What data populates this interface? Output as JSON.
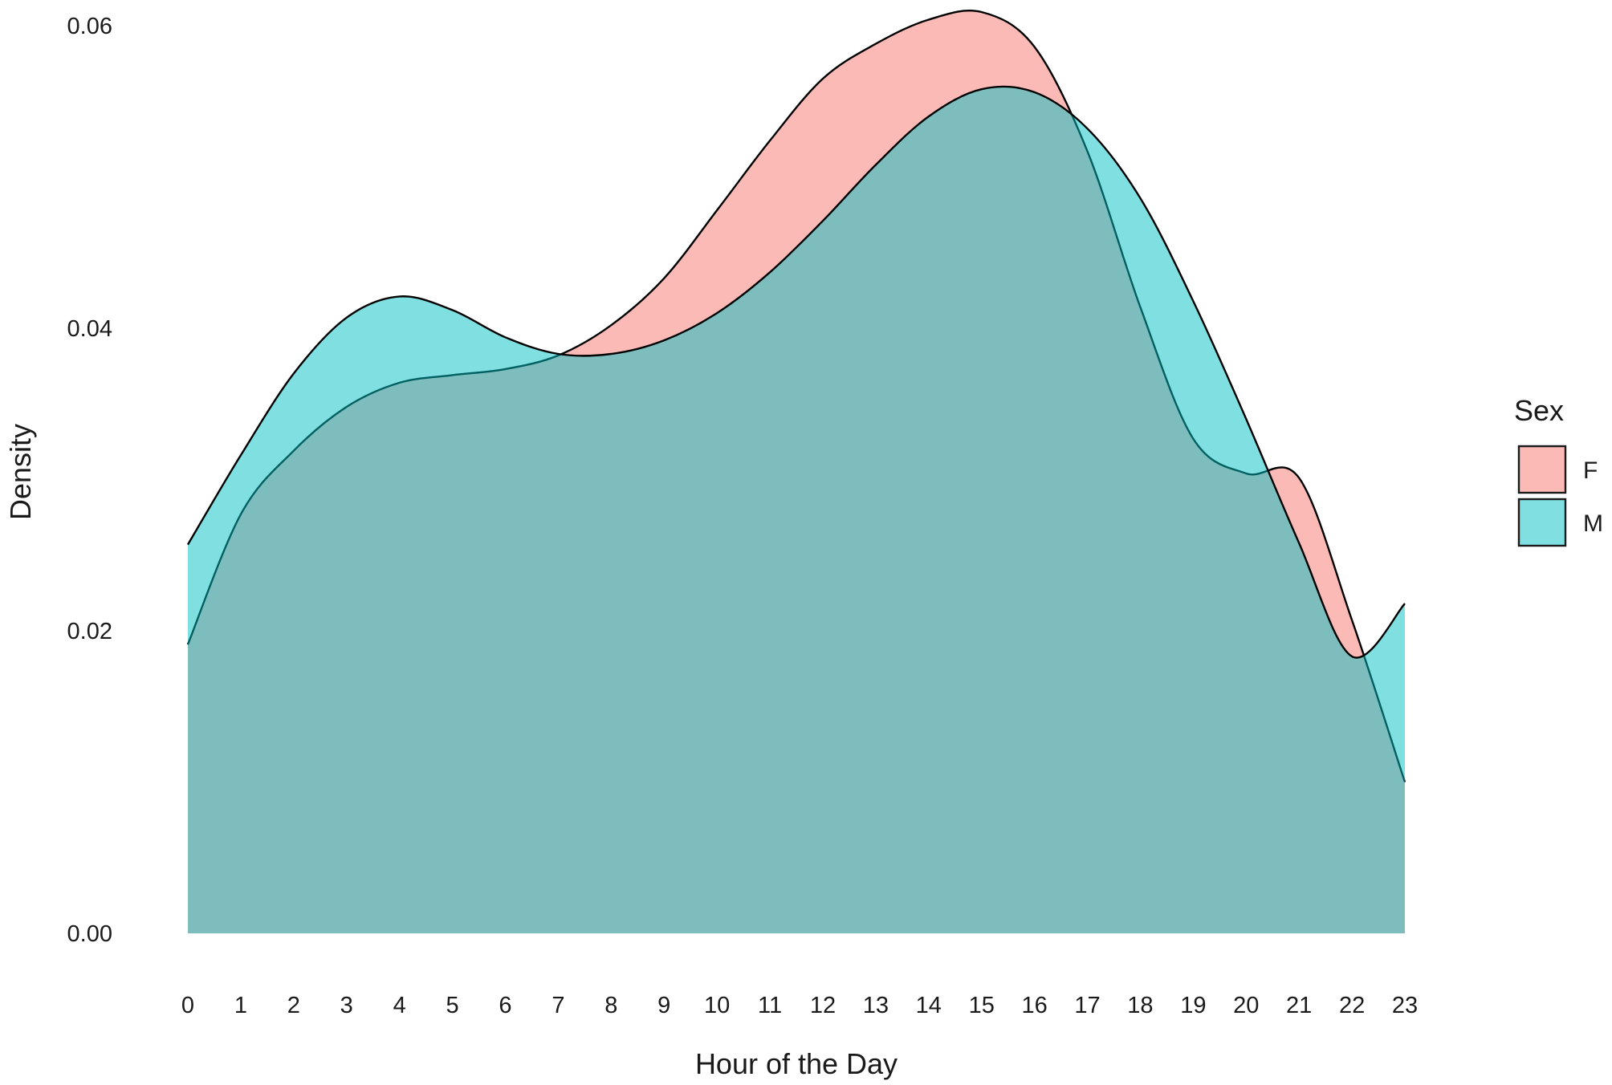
{
  "chart_data": {
    "type": "area",
    "subtype": "density",
    "title": "",
    "xlabel": "Hour of the Day",
    "ylabel": "Density",
    "x_ticks": [
      "0",
      "1",
      "2",
      "3",
      "4",
      "5",
      "6",
      "7",
      "8",
      "9",
      "10",
      "11",
      "12",
      "13",
      "14",
      "15",
      "16",
      "17",
      "18",
      "19",
      "20",
      "21",
      "22",
      "23"
    ],
    "y_ticks": [
      "0.00",
      "0.02",
      "0.04",
      "0.06"
    ],
    "xlim": [
      0,
      23
    ],
    "ylim": [
      0,
      0.06
    ],
    "grid": false,
    "legend": {
      "title": "Sex",
      "position": "right"
    },
    "x": [
      0,
      1,
      2,
      3,
      4,
      5,
      6,
      7,
      8,
      9,
      10,
      11,
      12,
      13,
      14,
      15,
      16,
      17,
      18,
      19,
      20,
      21,
      22,
      23
    ],
    "series": [
      {
        "name": "F",
        "color": "#F8766D",
        "values": [
          0.0191,
          0.0277,
          0.0319,
          0.0348,
          0.0364,
          0.0369,
          0.0373,
          0.0382,
          0.0402,
          0.0433,
          0.0478,
          0.0524,
          0.0565,
          0.0588,
          0.0604,
          0.0609,
          0.0586,
          0.0517,
          0.0414,
          0.0327,
          0.0304,
          0.0301,
          0.0207,
          0.01
        ]
      },
      {
        "name": "M",
        "color": "#00BFC4",
        "values": [
          0.0257,
          0.0316,
          0.037,
          0.0407,
          0.0421,
          0.0412,
          0.0394,
          0.0383,
          0.0383,
          0.0392,
          0.041,
          0.0437,
          0.0471,
          0.0508,
          0.054,
          0.0558,
          0.0556,
          0.0532,
          0.0486,
          0.0418,
          0.034,
          0.0258,
          0.0183,
          0.0218
        ]
      }
    ]
  }
}
